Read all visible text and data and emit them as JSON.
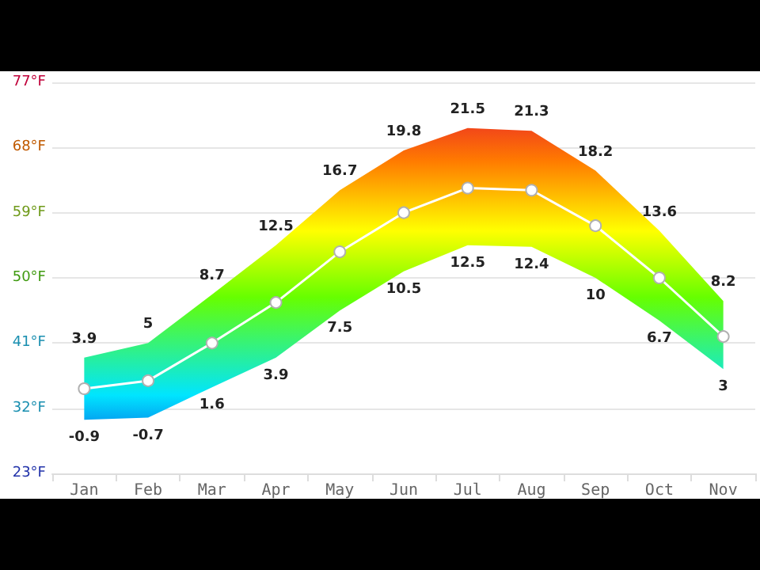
{
  "chart_data": {
    "type": "line",
    "categories": [
      "Jan",
      "Feb",
      "Mar",
      "Apr",
      "May",
      "Jun",
      "Jul",
      "Aug",
      "Sep",
      "Oct",
      "Nov"
    ],
    "series": [
      {
        "color": "#ffffff",
        "values": [
          34.7,
          35.8,
          41,
          46.6,
          53.6,
          59,
          62.4,
          62.1,
          57.2,
          50,
          41.9
        ],
        "lower": [
          30.4,
          30.7,
          34.9,
          39.0,
          45.5,
          50.9,
          54.5,
          54.3,
          50,
          44.1,
          37.4
        ],
        "upper": [
          39.0,
          41,
          47.7,
          54.5,
          62.1,
          67.6,
          70.7,
          70.3,
          64.8,
          56.5,
          46.8
        ]
      }
    ],
    "ylim": [
      23,
      77
    ],
    "yticks": [
      {
        "value": 23,
        "label": "23°F"
      },
      {
        "value": 32,
        "label": "32°F"
      },
      {
        "value": 41,
        "label": "41°F"
      },
      {
        "value": 50,
        "label": "50°F"
      },
      {
        "value": 59,
        "label": "59°F"
      },
      {
        "value": 68,
        "label": "68°F"
      },
      {
        "value": 77,
        "label": "77°F"
      }
    ],
    "grid": "y",
    "marker": "circle",
    "line_style": "solid",
    "annotations": [
      {
        "text": "3.9",
        "x": "Jan",
        "y": 39.0
      },
      {
        "text": "5",
        "x": "Feb",
        "y": 41
      },
      {
        "text": "8.7",
        "x": "Mar",
        "y": 47.7
      },
      {
        "text": "12.5",
        "x": "Apr",
        "y": 54.5
      },
      {
        "text": "16.7",
        "x": "May",
        "y": 62.1
      },
      {
        "text": "19.8",
        "x": "Jun",
        "y": 67.6
      },
      {
        "text": "21.5",
        "x": "Jul",
        "y": 70.7
      },
      {
        "text": "21.3",
        "x": "Aug",
        "y": 70.3
      },
      {
        "text": "18.2",
        "x": "Sep",
        "y": 64.8
      },
      {
        "text": "13.6",
        "x": "Oct",
        "y": 56.5
      },
      {
        "text": "8.2",
        "x": "Nov",
        "y": 46.8
      },
      {
        "text": "-0.9",
        "x": "Jan",
        "y": 30.4
      },
      {
        "text": "-0.7",
        "x": "Feb",
        "y": 30.7
      },
      {
        "text": "1.6",
        "x": "Mar",
        "y": 34.9
      },
      {
        "text": "3.9",
        "x": "Apr",
        "y": 39.0
      },
      {
        "text": "7.5",
        "x": "May",
        "y": 45.5
      },
      {
        "text": "10.5",
        "x": "Jun",
        "y": 50.9
      },
      {
        "text": "12.5",
        "x": "Jul",
        "y": 54.5
      },
      {
        "text": "12.4",
        "x": "Aug",
        "y": 54.3
      },
      {
        "text": "10",
        "x": "Sep",
        "y": 50
      },
      {
        "text": "6.7",
        "x": "Oct",
        "y": 44.1
      },
      {
        "text": "3",
        "x": "Nov",
        "y": 37.4
      }
    ]
  }
}
